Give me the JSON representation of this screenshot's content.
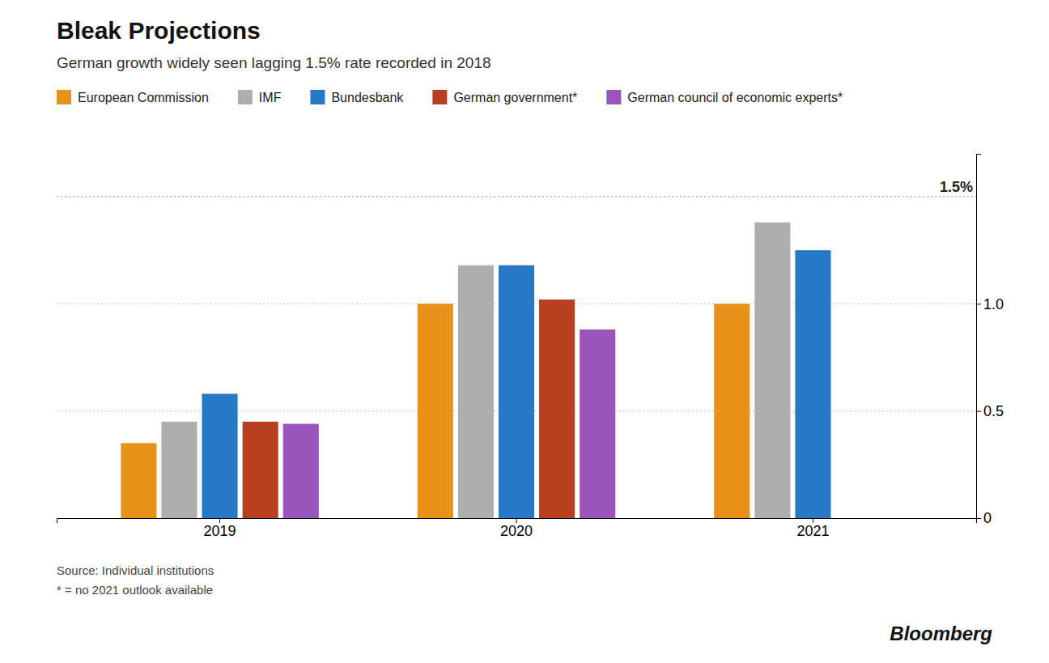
{
  "chart_data": {
    "type": "bar",
    "title": "Bleak Projections",
    "subtitle": "German growth widely seen lagging 1.5% rate recorded in 2018",
    "source": [
      "Source:  Individual institutions",
      "* = no 2021 outlook available"
    ],
    "credit": "Bloomberg",
    "categories": [
      "2019",
      "2020",
      "2021"
    ],
    "series": [
      {
        "name": "European Commission",
        "color": "#E8921A",
        "values": [
          0.35,
          1.0,
          1.0
        ]
      },
      {
        "name": "IMF",
        "color": "#ADADAD",
        "values": [
          0.45,
          1.18,
          1.38
        ]
      },
      {
        "name": "Bundesbank",
        "color": "#2878C8",
        "values": [
          0.58,
          1.18,
          1.25
        ]
      },
      {
        "name": "German government*",
        "color": "#B84020",
        "values": [
          0.45,
          1.02,
          null
        ]
      },
      {
        "name": "German council of economic experts*",
        "color": "#9955BB",
        "values": [
          0.44,
          0.88,
          null
        ]
      }
    ],
    "ylim": [
      0,
      1.7
    ],
    "yticks": [
      0,
      0.5,
      {
        "value": 1.0,
        "label": "1.0"
      }
    ],
    "annotations": [
      {
        "text": "1.5%",
        "y": 1.5
      }
    ],
    "grid": true,
    "legend": "top-left"
  }
}
